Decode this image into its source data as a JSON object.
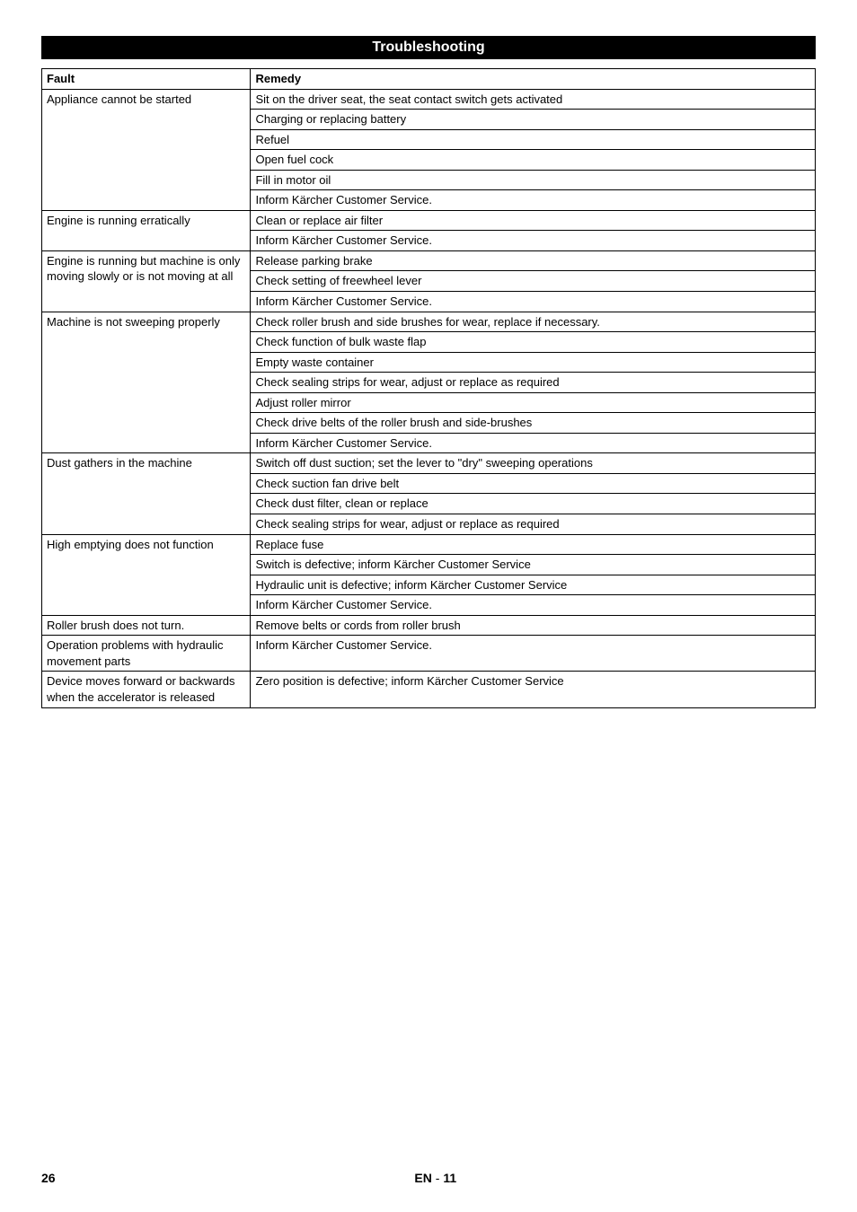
{
  "title": "Troubleshooting",
  "headers": {
    "fault": "Fault",
    "remedy": "Remedy"
  },
  "rows": [
    {
      "fault": "Appliance cannot be started",
      "remedies": [
        "Sit on the driver seat, the seat contact switch gets activated",
        "Charging or replacing battery",
        "Refuel",
        "Open fuel cock",
        "Fill in motor oil",
        "Inform Kärcher Customer Service."
      ]
    },
    {
      "fault": "Engine is running erratically",
      "remedies": [
        "Clean or replace air filter",
        "Inform Kärcher Customer Service."
      ]
    },
    {
      "fault": "Engine is running but machine is only moving slowly or is not moving at all",
      "remedies": [
        "Release parking brake",
        "Check setting of freewheel lever",
        "Inform Kärcher Customer Service."
      ]
    },
    {
      "fault": "Machine is not sweeping properly",
      "remedies": [
        "Check roller brush and side brushes for wear, replace if necessary.",
        "Check function of bulk waste flap",
        "Empty waste container",
        "Check sealing strips for wear, adjust or replace as required",
        "Adjust roller mirror",
        "Check drive belts of the roller brush and side-brushes",
        "Inform Kärcher Customer Service."
      ]
    },
    {
      "fault": "Dust gathers in the machine",
      "remedies": [
        "Switch off dust suction; set the lever to \"dry\" sweeping operations",
        "Check suction fan drive belt",
        "Check dust filter, clean or replace",
        "Check sealing strips for wear, adjust or replace as required"
      ]
    },
    {
      "fault": "High emptying does not function",
      "remedies": [
        "Replace fuse",
        "Switch is defective; inform Kärcher Customer Service",
        "Hydraulic unit is defective; inform Kärcher Customer Service",
        "Inform Kärcher Customer Service."
      ]
    },
    {
      "fault": "Roller brush does not turn.",
      "remedies": [
        "Remove belts or cords from roller brush"
      ]
    },
    {
      "fault": "Operation problems with hydraulic movement parts",
      "remedies": [
        "Inform Kärcher Customer Service."
      ]
    },
    {
      "fault": "Device moves forward or backwards when the accelerator is released",
      "remedies": [
        "Zero position is defective; inform Kärcher Customer Service"
      ]
    }
  ],
  "footer": {
    "page_num": "26",
    "lang": "EN",
    "sep": "  - ",
    "sub": "11"
  }
}
